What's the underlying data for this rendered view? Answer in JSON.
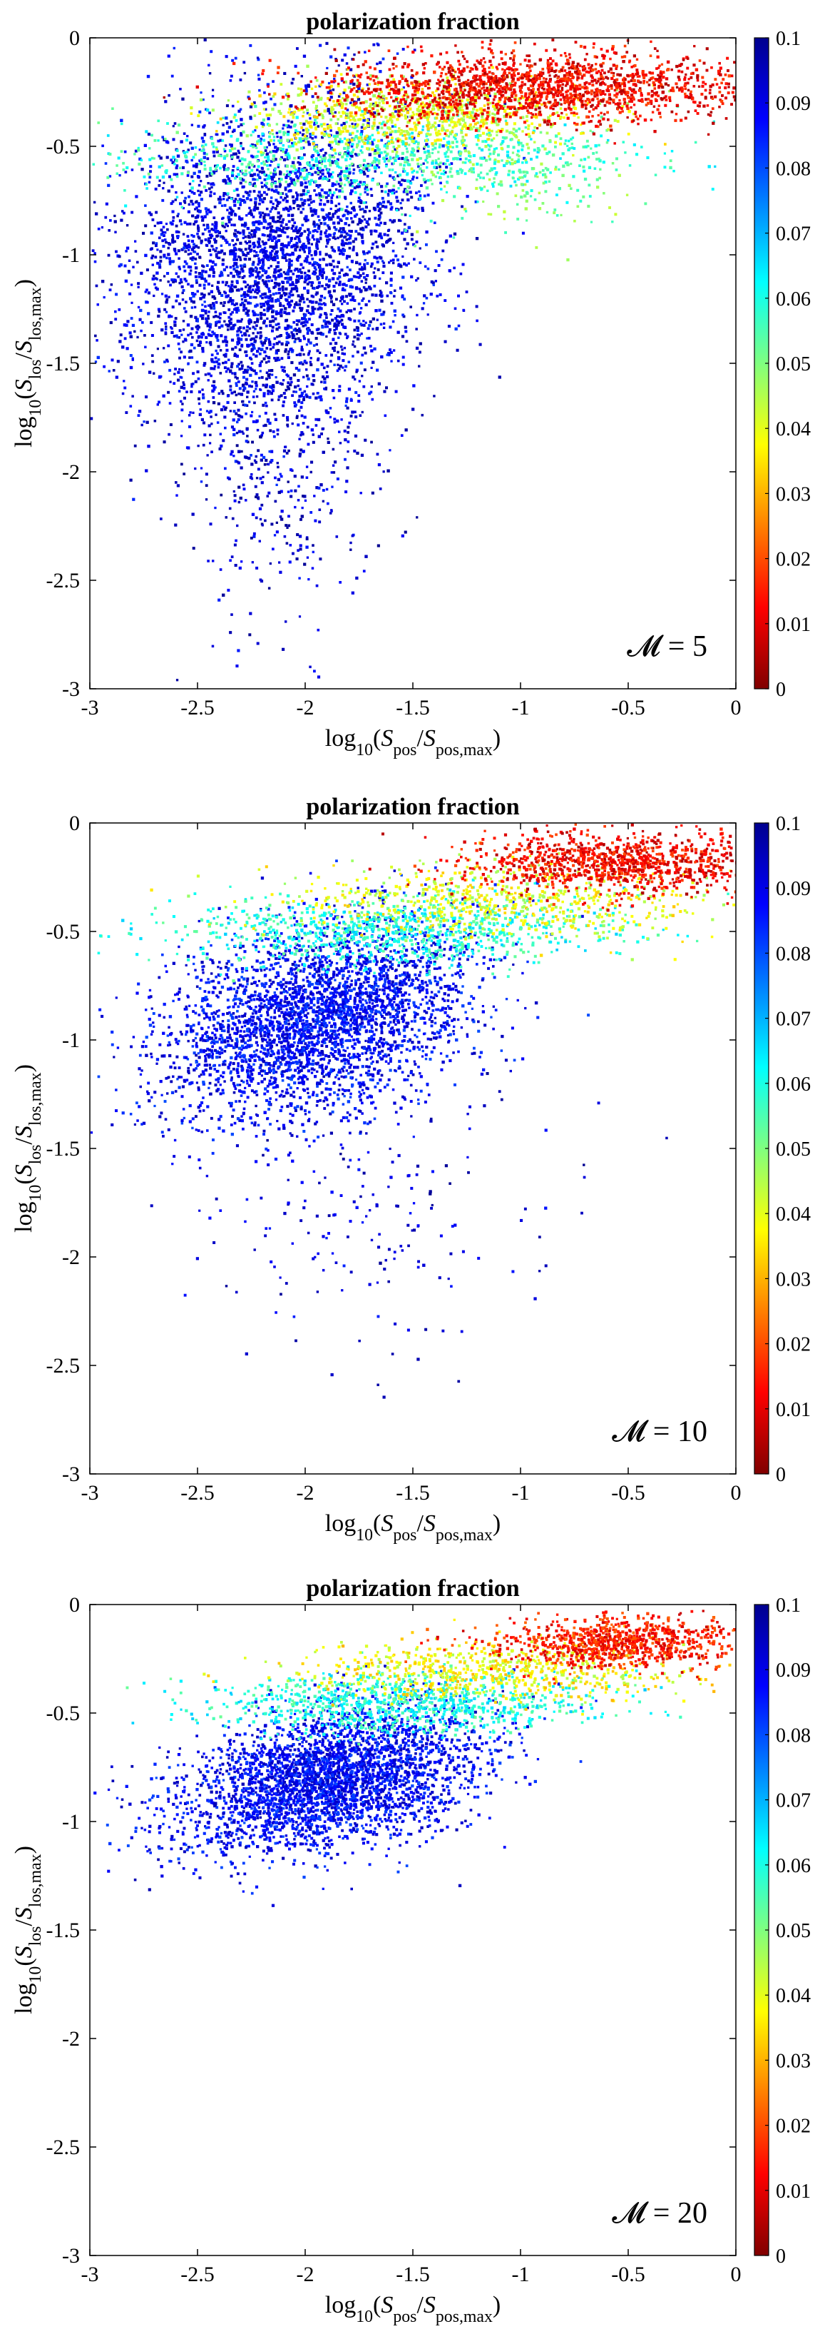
{
  "chart_data": [
    {
      "type": "scatter",
      "title": "polarization fraction",
      "annotation": "𝓜 = 5",
      "xlabel": {
        "prefix": "log",
        "sub": "10",
        "open": "(",
        "num": "S",
        "num_sub": "pos",
        "slash": "/",
        "den": "S",
        "den_sub": "pos,max",
        "close": ")"
      },
      "ylabel": {
        "prefix": "log",
        "sub": "10",
        "open": "(",
        "num": "S",
        "num_sub": "los",
        "slash": "/",
        "den": "S",
        "den_sub": "los,max",
        "close": ")"
      },
      "xlim": [
        -3,
        0
      ],
      "ylim": [
        -3,
        0
      ],
      "xticks": [
        "-3",
        "-2.5",
        "-2",
        "-1.5",
        "-1",
        "-0.5",
        "0"
      ],
      "yticks": [
        "-3",
        "-2.5",
        "-2",
        "-1.5",
        "-1",
        "-0.5",
        "0"
      ],
      "colorbar": {
        "label_values": [
          "0",
          "0.01",
          "0.02",
          "0.03",
          "0.04",
          "0.05",
          "0.06",
          "0.07",
          "0.08",
          "0.09",
          "0.1"
        ],
        "range": [
          0,
          0.1
        ]
      },
      "clusters": [
        {
          "x": -2.15,
          "y": -1.0,
          "sx": 0.35,
          "sy": 0.38,
          "corr": 0.15,
          "color_value": 0.09,
          "n": 3600
        },
        {
          "x": -2.1,
          "y": -1.85,
          "sx": 0.25,
          "sy": 0.4,
          "corr": 0.0,
          "color_value": 0.092,
          "n": 500
        },
        {
          "x": -1.7,
          "y": -0.55,
          "sx": 0.6,
          "sy": 0.09,
          "corr": 0.0,
          "color_value": 0.058,
          "n": 900
        },
        {
          "x": -1.5,
          "y": -0.35,
          "sx": 0.4,
          "sy": 0.08,
          "corr": 0.0,
          "color_value": 0.04,
          "n": 800
        },
        {
          "x": -0.9,
          "y": -0.22,
          "sx": 0.5,
          "sy": 0.08,
          "corr": 0.0,
          "color_value": 0.012,
          "n": 1700
        },
        {
          "x": -1.0,
          "y": -0.6,
          "sx": 0.25,
          "sy": 0.15,
          "corr": 0.0,
          "color_value": 0.05,
          "n": 150
        }
      ]
    },
    {
      "type": "scatter",
      "title": "polarization fraction",
      "annotation": "𝓜 = 10",
      "xlabel": {
        "prefix": "log",
        "sub": "10",
        "open": "(",
        "num": "S",
        "num_sub": "pos",
        "slash": "/",
        "den": "S",
        "den_sub": "pos,max",
        "close": ")"
      },
      "ylabel": {
        "prefix": "log",
        "sub": "10",
        "open": "(",
        "num": "S",
        "num_sub": "los",
        "slash": "/",
        "den": "S",
        "den_sub": "los,max",
        "close": ")"
      },
      "xlim": [
        -3,
        0
      ],
      "ylim": [
        -3,
        0
      ],
      "xticks": [
        "-3",
        "-2.5",
        "-2",
        "-1.5",
        "-1",
        "-0.5",
        "0"
      ],
      "yticks": [
        "-3",
        "-2.5",
        "-2",
        "-1.5",
        "-1",
        "-0.5",
        "0"
      ],
      "colorbar": {
        "label_values": [
          "0",
          "0.01",
          "0.02",
          "0.03",
          "0.04",
          "0.05",
          "0.06",
          "0.07",
          "0.08",
          "0.09",
          "0.1"
        ],
        "range": [
          0,
          0.1
        ]
      },
      "clusters": [
        {
          "x": -1.95,
          "y": -0.9,
          "sx": 0.35,
          "sy": 0.22,
          "corr": 0.3,
          "color_value": 0.088,
          "n": 3400
        },
        {
          "x": -1.75,
          "y": -1.75,
          "sx": 0.45,
          "sy": 0.35,
          "corr": 0.0,
          "color_value": 0.092,
          "n": 220
        },
        {
          "x": -1.6,
          "y": -0.5,
          "sx": 0.5,
          "sy": 0.08,
          "corr": 0.0,
          "color_value": 0.06,
          "n": 900
        },
        {
          "x": -1.1,
          "y": -0.35,
          "sx": 0.5,
          "sy": 0.08,
          "corr": 0.0,
          "color_value": 0.04,
          "n": 700
        },
        {
          "x": -0.55,
          "y": -0.18,
          "sx": 0.35,
          "sy": 0.07,
          "corr": 0.0,
          "color_value": 0.012,
          "n": 1100
        }
      ]
    },
    {
      "type": "scatter",
      "title": "polarization fraction",
      "annotation": "𝓜 = 20",
      "xlabel": {
        "prefix": "log",
        "sub": "10",
        "open": "(",
        "num": "S",
        "num_sub": "pos",
        "slash": "/",
        "den": "S",
        "den_sub": "pos,max",
        "close": ")"
      },
      "ylabel": {
        "prefix": "log",
        "sub": "10",
        "open": "(",
        "num": "S",
        "num_sub": "los",
        "slash": "/",
        "den": "S",
        "den_sub": "los,max",
        "close": ")"
      },
      "xlim": [
        -3,
        0
      ],
      "ylim": [
        -3,
        0
      ],
      "xticks": [
        "-3",
        "-2.5",
        "-2",
        "-1.5",
        "-1",
        "-0.5",
        "0"
      ],
      "yticks": [
        "-3",
        "-2.5",
        "-2",
        "-1.5",
        "-1",
        "-0.5",
        "0"
      ],
      "colorbar": {
        "label_values": [
          "0",
          "0.01",
          "0.02",
          "0.03",
          "0.04",
          "0.05",
          "0.06",
          "0.07",
          "0.08",
          "0.09",
          "0.1"
        ],
        "range": [
          0,
          0.1
        ]
      },
      "clusters": [
        {
          "x": -1.9,
          "y": -0.8,
          "sx": 0.35,
          "sy": 0.17,
          "corr": 0.35,
          "color_value": 0.088,
          "n": 3400
        },
        {
          "x": -1.55,
          "y": -0.45,
          "sx": 0.45,
          "sy": 0.07,
          "corr": 0.0,
          "color_value": 0.06,
          "n": 900
        },
        {
          "x": -1.1,
          "y": -0.3,
          "sx": 0.45,
          "sy": 0.07,
          "corr": 0.0,
          "color_value": 0.038,
          "n": 700
        },
        {
          "x": -0.55,
          "y": -0.17,
          "sx": 0.3,
          "sy": 0.06,
          "corr": 0.0,
          "color_value": 0.015,
          "n": 900
        }
      ]
    }
  ]
}
